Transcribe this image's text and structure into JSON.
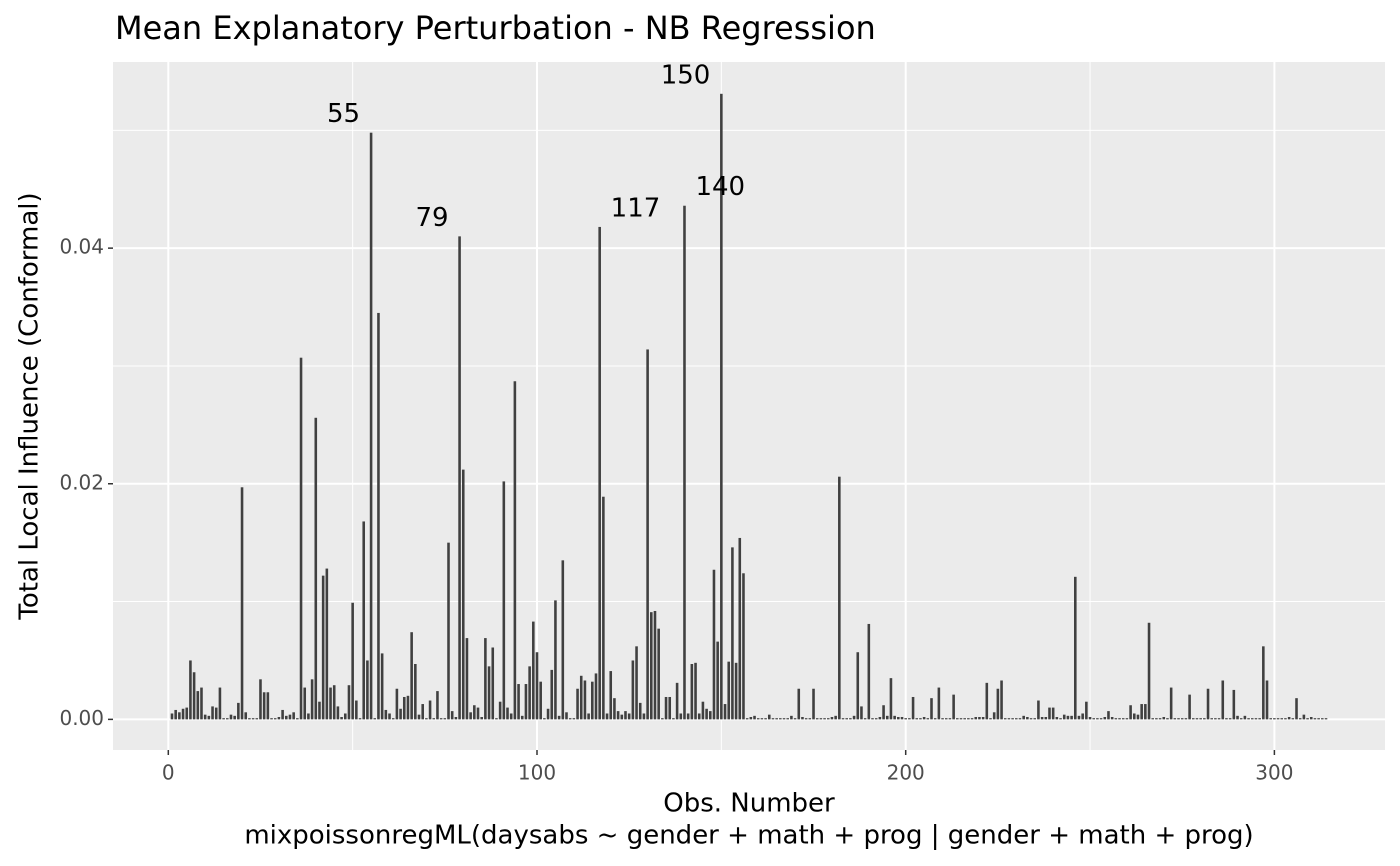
{
  "chart_data": {
    "type": "bar",
    "title": "Mean Explanatory Perturbation - NB Regression",
    "xlabel": [
      "Obs. Number",
      "mixpoissonregML(daysabs ~ gender + math + prog | gender + math + prog)"
    ],
    "ylabel": "Total Local Influence (Conformal)",
    "color": "#404040",
    "xlim": [
      -15,
      330
    ],
    "ylim": [
      -0.0026,
      0.0558
    ],
    "xticks": [
      0,
      100,
      200,
      300
    ],
    "xminor": [
      50,
      150,
      250
    ],
    "yticks": [
      {
        "value": 0,
        "label": "0.00"
      },
      {
        "value": 0.02,
        "label": "0.02"
      },
      {
        "value": 0.04,
        "label": "0.04"
      }
    ],
    "yminor": [
      0.01,
      0.03,
      0.05
    ],
    "grid": true,
    "annotations": [
      {
        "text": "55",
        "x": 55
      },
      {
        "text": "79",
        "x": 79
      },
      {
        "text": "117",
        "x": 117
      },
      {
        "text": "140",
        "x": 140
      },
      {
        "text": "150",
        "x": 150
      }
    ],
    "x": [
      1,
      2,
      3,
      4,
      5,
      6,
      7,
      8,
      9,
      10,
      11,
      12,
      13,
      14,
      15,
      16,
      17,
      18,
      19,
      20,
      21,
      22,
      23,
      24,
      25,
      26,
      27,
      28,
      29,
      30,
      31,
      32,
      33,
      34,
      35,
      36,
      37,
      38,
      39,
      40,
      41,
      42,
      43,
      44,
      45,
      46,
      47,
      48,
      49,
      50,
      51,
      52,
      53,
      54,
      55,
      56,
      57,
      58,
      59,
      60,
      61,
      62,
      63,
      64,
      65,
      66,
      67,
      68,
      69,
      70,
      71,
      72,
      73,
      74,
      75,
      76,
      77,
      78,
      79,
      80,
      81,
      82,
      83,
      84,
      85,
      86,
      87,
      88,
      89,
      90,
      91,
      92,
      93,
      94,
      95,
      96,
      97,
      98,
      99,
      100,
      101,
      102,
      103,
      104,
      105,
      106,
      107,
      108,
      109,
      110,
      111,
      112,
      113,
      114,
      115,
      116,
      117,
      118,
      119,
      120,
      121,
      122,
      123,
      124,
      125,
      126,
      127,
      128,
      129,
      130,
      131,
      132,
      133,
      134,
      135,
      136,
      137,
      138,
      139,
      140,
      141,
      142,
      143,
      144,
      145,
      146,
      147,
      148,
      149,
      150,
      151,
      152,
      153,
      154,
      155,
      156,
      157,
      158,
      159,
      160,
      161,
      162,
      163,
      164,
      165,
      166,
      167,
      168,
      169,
      170,
      171,
      172,
      173,
      174,
      175,
      176,
      177,
      178,
      179,
      180,
      181,
      182,
      183,
      184,
      185,
      186,
      187,
      188,
      189,
      190,
      191,
      192,
      193,
      194,
      195,
      196,
      197,
      198,
      199,
      200,
      201,
      202,
      203,
      204,
      205,
      206,
      207,
      208,
      209,
      210,
      211,
      212,
      213,
      214,
      215,
      216,
      217,
      218,
      219,
      220,
      221,
      222,
      223,
      224,
      225,
      226,
      227,
      228,
      229,
      230,
      231,
      232,
      233,
      234,
      235,
      236,
      237,
      238,
      239,
      240,
      241,
      242,
      243,
      244,
      245,
      246,
      247,
      248,
      249,
      250,
      251,
      252,
      253,
      254,
      255,
      256,
      257,
      258,
      259,
      260,
      261,
      262,
      263,
      264,
      265,
      266,
      267,
      268,
      269,
      270,
      271,
      272,
      273,
      274,
      275,
      276,
      277,
      278,
      279,
      280,
      281,
      282,
      283,
      284,
      285,
      286,
      287,
      288,
      289,
      290,
      291,
      292,
      293,
      294,
      295,
      296,
      297,
      298,
      299,
      300,
      301,
      302,
      303,
      304,
      305,
      306,
      307,
      308,
      309,
      310,
      311,
      312,
      313,
      314
    ],
    "values": [
      0.0005,
      0.0008,
      0.0006,
      0.0009,
      0.001,
      0.005,
      0.004,
      0.0024,
      0.0027,
      0.0004,
      0.0003,
      0.0011,
      0.001,
      0.0027,
      0.0001,
      0.0001,
      0.0004,
      0.0003,
      0.0014,
      0.0197,
      0.0006,
      0.0001,
      0.0001,
      0.0001,
      0.0034,
      0.0023,
      0.0023,
      0.0001,
      0.0001,
      0.0002,
      0.0008,
      0.0003,
      0.0004,
      0.0006,
      0.0001,
      0.0307,
      0.0027,
      0.0005,
      0.0034,
      0.0256,
      0.0015,
      0.0122,
      0.0128,
      0.0027,
      0.0029,
      0.0011,
      0.0002,
      0.0005,
      0.0029,
      0.0099,
      0.0016,
      0.0001,
      0.0168,
      0.005,
      0.0498,
      0.0001,
      0.0345,
      0.0056,
      0.0008,
      0.0005,
      0.0001,
      0.0026,
      0.0009,
      0.0019,
      0.002,
      0.0074,
      0.0047,
      0.0004,
      0.0013,
      0.0001,
      0.0016,
      0.0001,
      0.0024,
      0.0001,
      0.0001,
      0.015,
      0.0007,
      0.0002,
      0.041,
      0.0212,
      0.0069,
      0.0006,
      0.0012,
      0.001,
      0.0002,
      0.0069,
      0.0045,
      0.0061,
      0.0001,
      0.0015,
      0.0202,
      0.001,
      0.0005,
      0.0287,
      0.003,
      0.0003,
      0.003,
      0.0045,
      0.0083,
      0.0057,
      0.0032,
      0.0001,
      0.0009,
      0.0042,
      0.0101,
      0.0003,
      0.0135,
      0.0006,
      0.0001,
      0.0001,
      0.0026,
      0.0037,
      0.0033,
      0.0005,
      0.0032,
      0.0039,
      0.0418,
      0.0189,
      0.0005,
      0.0041,
      0.0018,
      0.0007,
      0.0004,
      0.0007,
      0.0005,
      0.005,
      0.0062,
      0.0014,
      0.0005,
      0.0314,
      0.0091,
      0.0092,
      0.0077,
      0.0001,
      0.0019,
      0.0019,
      0.0001,
      0.0031,
      0.0005,
      0.0436,
      0.0005,
      0.0047,
      0.0048,
      0.0005,
      0.0015,
      0.0009,
      0.0007,
      0.0127,
      0.0066,
      0.0531,
      0.0013,
      0.0049,
      0.0146,
      0.0048,
      0.0154,
      0.0124,
      0.0001,
      0.0002,
      0.0003,
      0.0001,
      0.0001,
      0.0001,
      0.0004,
      0.0001,
      0.0001,
      0.0001,
      0.0001,
      0.0001,
      0.0003,
      0.0001,
      0.0026,
      0.0002,
      0.0001,
      0.0001,
      0.0026,
      0.0001,
      0.0001,
      0.0001,
      0.0001,
      0.0002,
      0.0003,
      0.0206,
      0.0001,
      0.0001,
      0.0001,
      0.0003,
      0.0057,
      0.0011,
      0.0001,
      0.0081,
      0.0001,
      0.0001,
      0.0002,
      0.0012,
      0.0003,
      0.0035,
      0.0003,
      0.0002,
      0.0002,
      0.0001,
      0.0001,
      0.0019,
      0.0001,
      0.0001,
      0.0002,
      0.0001,
      0.0018,
      0.0001,
      0.0027,
      0.0001,
      0.0001,
      0.0001,
      0.0021,
      0.0001,
      0.0001,
      0.0001,
      0.0001,
      0.0001,
      0.0002,
      0.0002,
      0.0002,
      0.0031,
      0.0001,
      0.0006,
      0.0026,
      0.0033,
      0.0001,
      0.0001,
      0.0001,
      0.0001,
      0.0001,
      0.0003,
      0.0002,
      0.0001,
      0.0001,
      0.0016,
      0.0002,
      0.0002,
      0.001,
      0.001,
      0.0002,
      0.0001,
      0.0004,
      0.0003,
      0.0003,
      0.0121,
      0.0003,
      0.0005,
      0.0015,
      0.0002,
      0.0001,
      0.0001,
      0.0001,
      0.0002,
      0.0007,
      0.0002,
      0.0001,
      0.0001,
      0.0001,
      0.0001,
      0.0012,
      0.0005,
      0.0004,
      0.0013,
      0.0013,
      0.0082,
      0.0001,
      0.0001,
      0.0001,
      0.0002,
      0.0001,
      0.0027,
      0.0001,
      0.0001,
      0.0001,
      0.0001,
      0.0021,
      0.0001,
      0.0001,
      0.0001,
      0.0001,
      0.0026,
      0.0001,
      0.0001,
      0.0001,
      0.0033,
      0.0001,
      0.0001,
      0.0025,
      0.0003,
      0.0001,
      0.0003,
      0.0001,
      0.0001,
      0.0001,
      0.0001,
      0.0062,
      0.0033,
      0.0001,
      0.0001,
      0.0001,
      0.0001,
      0.0001,
      0.0002,
      0.0001,
      0.0018,
      0.0001,
      0.0004,
      0.0001,
      0.0002,
      0.0001,
      0.0001,
      0.0001,
      0.0001
    ]
  }
}
